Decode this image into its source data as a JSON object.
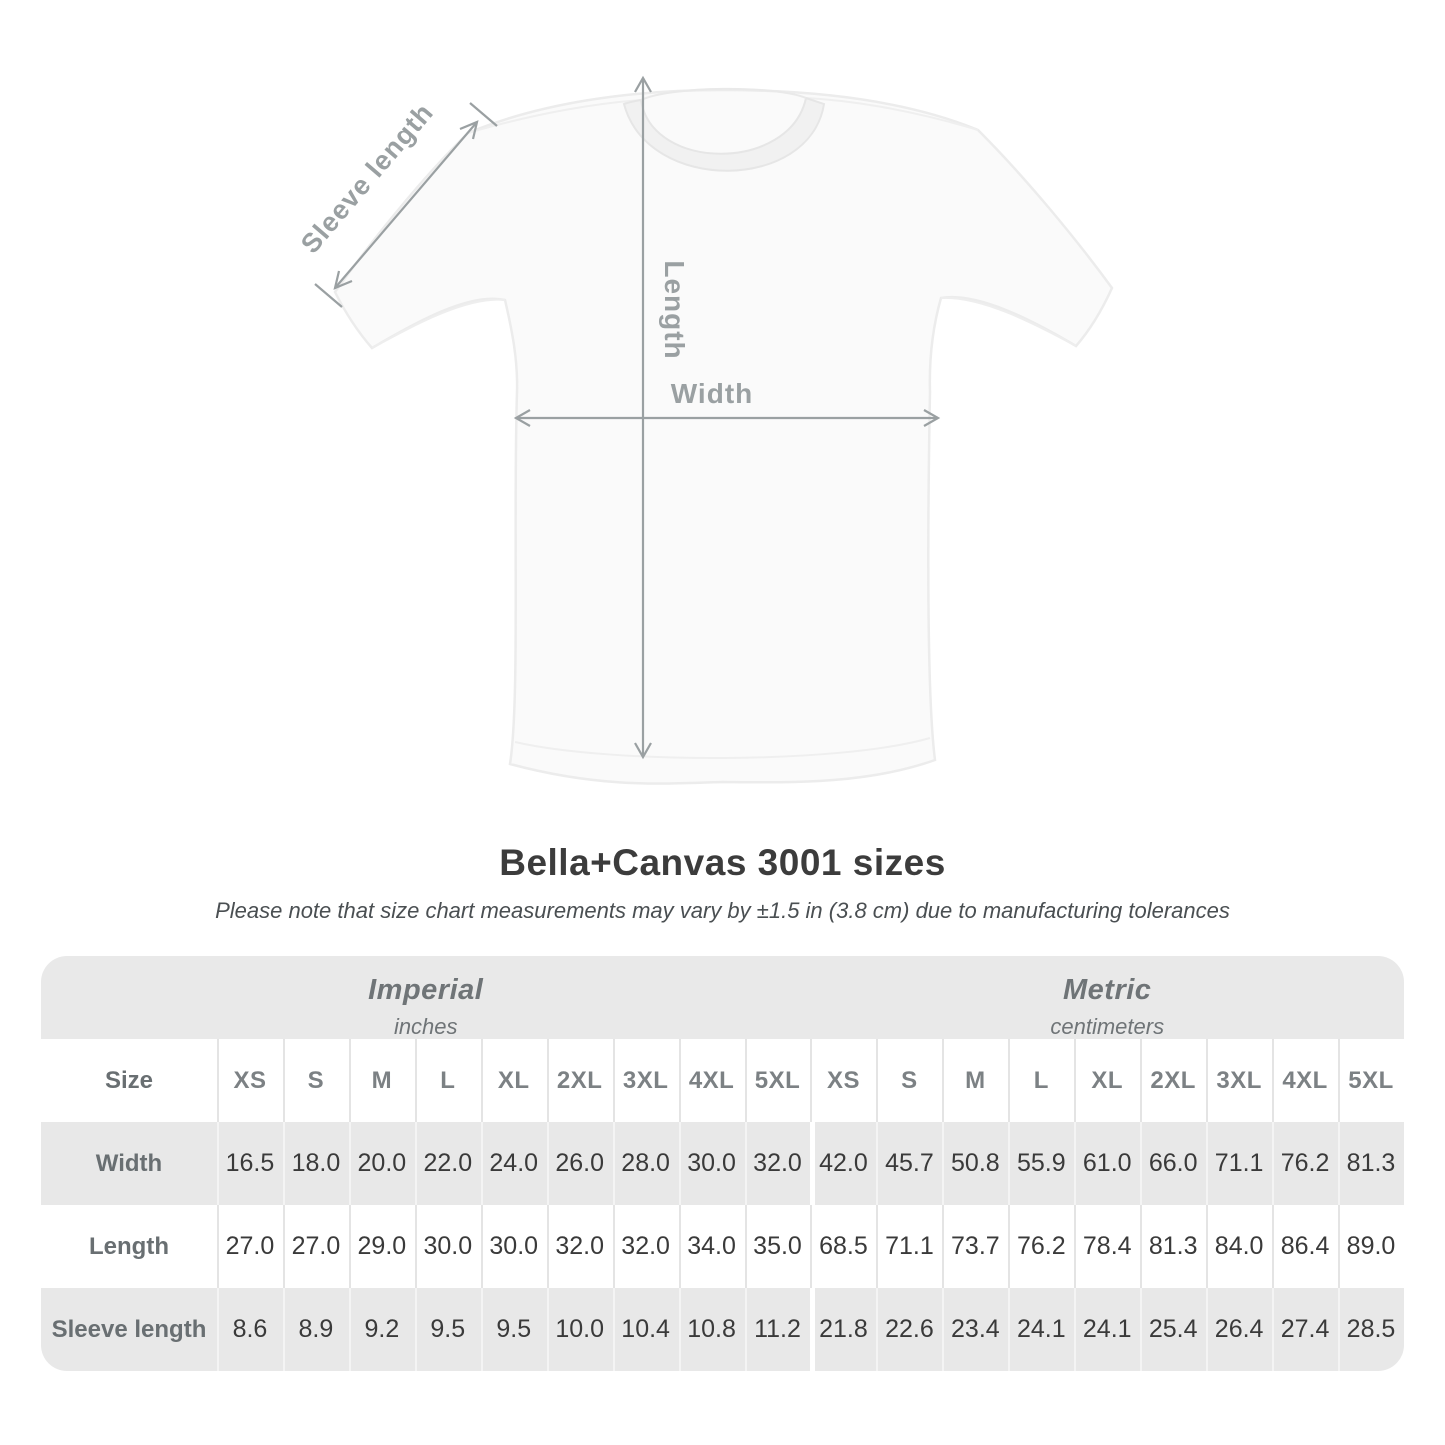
{
  "title": "Bella+Canvas 3001 sizes",
  "subtitle": "Please note that size chart measurements may vary by ±1.5 in (3.8 cm) due to manufacturing tolerances",
  "diagram": {
    "labels": {
      "sleeve": "Sleeve length",
      "length": "Length",
      "width": "Width"
    }
  },
  "table": {
    "unit_groups": [
      {
        "label": "Imperial",
        "sublabel": "inches"
      },
      {
        "label": "Metric",
        "sublabel": "centimeters"
      }
    ],
    "size_header": "Size",
    "sizes": [
      "XS",
      "S",
      "M",
      "L",
      "XL",
      "2XL",
      "3XL",
      "4XL",
      "5XL"
    ],
    "rows": [
      {
        "label": "Width",
        "imperial": [
          "16.5",
          "18.0",
          "20.0",
          "22.0",
          "24.0",
          "26.0",
          "28.0",
          "30.0",
          "32.0"
        ],
        "metric": [
          "42.0",
          "45.7",
          "50.8",
          "55.9",
          "61.0",
          "66.0",
          "71.1",
          "76.2",
          "81.3"
        ]
      },
      {
        "label": "Length",
        "imperial": [
          "27.0",
          "27.0",
          "29.0",
          "30.0",
          "30.0",
          "32.0",
          "32.0",
          "34.0",
          "35.0"
        ],
        "metric": [
          "68.5",
          "71.1",
          "73.7",
          "76.2",
          "78.4",
          "81.3",
          "84.0",
          "86.4",
          "89.0"
        ]
      },
      {
        "label": "Sleeve length",
        "imperial": [
          "8.6",
          "8.9",
          "9.2",
          "9.5",
          "9.5",
          "10.0",
          "10.4",
          "10.8",
          "11.2"
        ],
        "metric": [
          "21.8",
          "22.6",
          "23.4",
          "24.1",
          "24.1",
          "25.4",
          "26.4",
          "27.4",
          "28.5"
        ]
      }
    ]
  },
  "colors": {
    "arrow": "#9aa0a2",
    "title": "#3c3c3c",
    "subtitle": "#4a4f52",
    "band-bg": "#e9e9e9",
    "stripe-bg": "#e8e8e8",
    "muted": "#6f7477",
    "size-header": "#7c8184",
    "row-label": "#696f72",
    "value": "#3a3a3a",
    "sep-white": "#e4e4e4",
    "sep-gray": "#f4f4f4",
    "shirt-fill": "#fafafa",
    "shirt-line": "#ececec"
  }
}
